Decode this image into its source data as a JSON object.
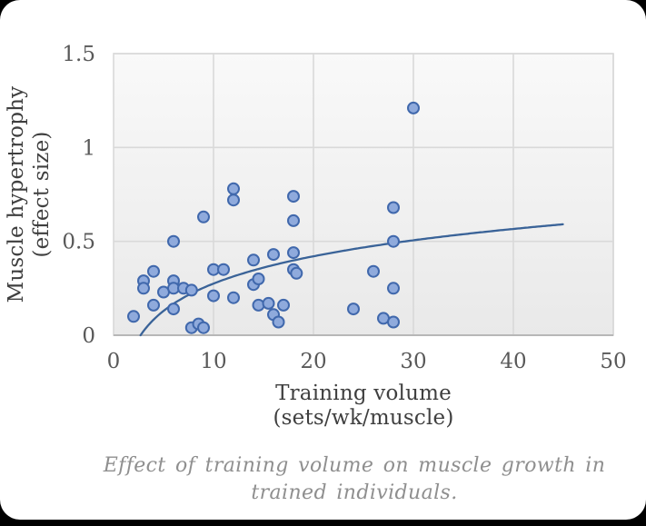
{
  "chart_data": {
    "type": "scatter",
    "title": "",
    "xlabel_lines": [
      "Training volume",
      "(sets/wk/muscle)"
    ],
    "ylabel_lines": [
      "Muscle hypertrophy",
      "(effect size)"
    ],
    "xlim": [
      0,
      50
    ],
    "ylim": [
      0,
      1.5
    ],
    "xticks": [
      0,
      10,
      20,
      30,
      40,
      50
    ],
    "yticks": [
      0,
      0.5,
      1,
      1.5
    ],
    "grid": true,
    "legend": false,
    "points": [
      [
        2,
        0.1
      ],
      [
        3,
        0.29
      ],
      [
        3,
        0.25
      ],
      [
        4,
        0.34
      ],
      [
        4,
        0.16
      ],
      [
        5,
        0.23
      ],
      [
        6,
        0.5
      ],
      [
        6,
        0.29
      ],
      [
        6,
        0.25
      ],
      [
        6,
        0.14
      ],
      [
        7,
        0.25
      ],
      [
        7.8,
        0.24
      ],
      [
        7.8,
        0.04
      ],
      [
        8.5,
        0.06
      ],
      [
        9,
        0.04
      ],
      [
        9,
        0.63
      ],
      [
        10,
        0.35
      ],
      [
        10,
        0.21
      ],
      [
        11,
        0.35
      ],
      [
        12,
        0.78
      ],
      [
        12,
        0.72
      ],
      [
        12,
        0.2
      ],
      [
        14,
        0.4
      ],
      [
        14,
        0.27
      ],
      [
        14.5,
        0.3
      ],
      [
        14.5,
        0.16
      ],
      [
        15.5,
        0.17
      ],
      [
        16,
        0.43
      ],
      [
        16,
        0.11
      ],
      [
        16.5,
        0.07
      ],
      [
        17,
        0.16
      ],
      [
        18,
        0.74
      ],
      [
        18,
        0.61
      ],
      [
        18,
        0.44
      ],
      [
        18,
        0.35
      ],
      [
        18.3,
        0.33
      ],
      [
        24,
        0.14
      ],
      [
        26,
        0.34
      ],
      [
        27,
        0.09
      ],
      [
        28,
        0.68
      ],
      [
        28,
        0.5
      ],
      [
        28,
        0.25
      ],
      [
        28,
        0.07
      ],
      [
        30,
        1.21
      ]
    ],
    "trendline": {
      "type": "logarithmic",
      "equation": "y = 0.21 * ln(x / 2.7)",
      "coef": 0.21,
      "x_intercept": 2.7,
      "x_start": 2.7,
      "x_end": 45
    }
  },
  "caption_lines": [
    "Effect of training volume on muscle growth in",
    "trained individuals."
  ],
  "colors": {
    "point_fill": "#8faadc",
    "point_stroke": "#4068ac",
    "trend_line": "#3a6398",
    "gridline": "#d9d9d9",
    "plot_border": "#d9d9d9",
    "axis_line": "#b7b7b7",
    "tick_text": "#595959",
    "axis_title_text": "#3f3f3f",
    "caption_text": "#8f8f8f",
    "plot_bg_top": "#f9f9f9",
    "plot_bg_bottom": "#e9e9e9"
  }
}
